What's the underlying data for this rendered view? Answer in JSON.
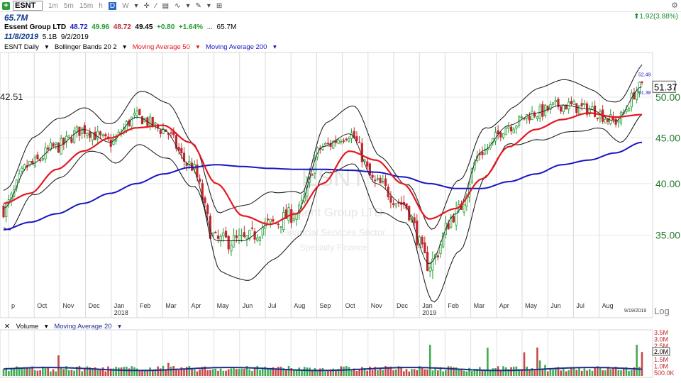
{
  "toolbar": {
    "symbol": "ESNT",
    "periods": [
      "1m",
      "5m",
      "15m",
      "h",
      "D",
      "W"
    ],
    "active_period": "D"
  },
  "header": {
    "volume_label": "65.7M",
    "company": "Essent Group LTD",
    "open": "48.72",
    "high": "49.96",
    "low": "48.72",
    "close": "49.45",
    "change": "+0.80",
    "change_pct": "+1.64%",
    "volume": "65.7M",
    "date": "11/8/2019",
    "market_cap": "5.1B",
    "earnings_date": "9/2/2019",
    "right_change": "1.92(3.88%)"
  },
  "legend": {
    "symbol": "ESNT Daily",
    "bb": "Bollinger Bands 20 2",
    "ma50": "Moving Average 50",
    "ma200": "Moving Average 200",
    "volume": "Volume",
    "vol_ma": "Moving Average 20"
  },
  "watermark": {
    "symbol": "ESNT",
    "name": "Essent Group LTD",
    "sector": "Financial Services Sector",
    "industry": "Specialty Finance"
  },
  "colors": {
    "up": "#1e9e32",
    "down": "#c0282d",
    "ma50": "#e4181f",
    "ma200": "#1616c4",
    "bb": "#222222",
    "volma": "#1b2e8c",
    "axis_text": "#1d7a2c"
  },
  "chart_data": {
    "type": "line",
    "title": "ESNT Daily",
    "y_axis_labels": [
      "35.00",
      "40.00",
      "45.00",
      "50.00"
    ],
    "last_price": "51.37",
    "price_marker_left": "42.51",
    "marker_high": "52.49",
    "marker_low": "51.38",
    "scale_label": "Log",
    "last_date_label": "9/19/2019",
    "x_month_labels": [
      "p",
      "Oct",
      "Nov",
      "Dec",
      "Jan",
      "Feb",
      "Mar",
      "Apr",
      "May",
      "Jun",
      "Jul",
      "Aug",
      "Sep",
      "Oct",
      "Nov",
      "Dec",
      "Jan",
      "Feb",
      "Mar",
      "Apr",
      "May",
      "Jun",
      "Jul",
      "Aug"
    ],
    "x_year_labels": [
      "2018",
      "2019"
    ],
    "volume_axis_labels": [
      "3.5M",
      "3.0M",
      "2.5M",
      "2.0M",
      "1.5M",
      "1.0M",
      "500.0K"
    ],
    "volume_last": "2.0M",
    "close_series": [
      {
        "date": "2017-09",
        "value": 37.5
      },
      {
        "date": "2017-10",
        "value": 42.0
      },
      {
        "date": "2017-11",
        "value": 44.0
      },
      {
        "date": "2017-12",
        "value": 46.0
      },
      {
        "date": "2018-01",
        "value": 44.5
      },
      {
        "date": "2018-02",
        "value": 47.5
      },
      {
        "date": "2018-03",
        "value": 46.0
      },
      {
        "date": "2018-04",
        "value": 42.0
      },
      {
        "date": "2018-05",
        "value": 34.5
      },
      {
        "date": "2018-06",
        "value": 34.5
      },
      {
        "date": "2018-07",
        "value": 36.0
      },
      {
        "date": "2018-08",
        "value": 37.0
      },
      {
        "date": "2018-09",
        "value": 44.0
      },
      {
        "date": "2018-10",
        "value": 45.5
      },
      {
        "date": "2018-11",
        "value": 40.0
      },
      {
        "date": "2018-12",
        "value": 38.0
      },
      {
        "date": "2019-01",
        "value": 32.5
      },
      {
        "date": "2019-02",
        "value": 37.0
      },
      {
        "date": "2019-03",
        "value": 43.5
      },
      {
        "date": "2019-04",
        "value": 46.5
      },
      {
        "date": "2019-05",
        "value": 48.0
      },
      {
        "date": "2019-06",
        "value": 49.0
      },
      {
        "date": "2019-07",
        "value": 48.5
      },
      {
        "date": "2019-08",
        "value": 47.0
      },
      {
        "date": "2019-09",
        "value": 51.37
      }
    ],
    "ma50_series": [
      {
        "date": "2017-09",
        "value": 38.0
      },
      {
        "date": "2017-10",
        "value": 39.0
      },
      {
        "date": "2017-11",
        "value": 41.5
      },
      {
        "date": "2017-12",
        "value": 43.5
      },
      {
        "date": "2018-01",
        "value": 45.0
      },
      {
        "date": "2018-02",
        "value": 46.2
      },
      {
        "date": "2018-03",
        "value": 46.5
      },
      {
        "date": "2018-04",
        "value": 44.5
      },
      {
        "date": "2018-05",
        "value": 40.0
      },
      {
        "date": "2018-06",
        "value": 36.8
      },
      {
        "date": "2018-07",
        "value": 36.0
      },
      {
        "date": "2018-08",
        "value": 37.0
      },
      {
        "date": "2018-09",
        "value": 40.0
      },
      {
        "date": "2018-10",
        "value": 43.5
      },
      {
        "date": "2018-11",
        "value": 42.5
      },
      {
        "date": "2018-12",
        "value": 40.0
      },
      {
        "date": "2019-01",
        "value": 36.5
      },
      {
        "date": "2019-02",
        "value": 37.5
      },
      {
        "date": "2019-03",
        "value": 40.5
      },
      {
        "date": "2019-04",
        "value": 44.0
      },
      {
        "date": "2019-05",
        "value": 46.0
      },
      {
        "date": "2019-06",
        "value": 47.2
      },
      {
        "date": "2019-07",
        "value": 48.0
      },
      {
        "date": "2019-08",
        "value": 47.5
      },
      {
        "date": "2019-09",
        "value": 47.8
      }
    ],
    "ma200_series": [
      {
        "date": "2017-09",
        "value": 35.5
      },
      {
        "date": "2017-10",
        "value": 36.2
      },
      {
        "date": "2017-11",
        "value": 37.0
      },
      {
        "date": "2017-12",
        "value": 38.0
      },
      {
        "date": "2018-01",
        "value": 39.0
      },
      {
        "date": "2018-02",
        "value": 40.0
      },
      {
        "date": "2018-03",
        "value": 41.0
      },
      {
        "date": "2018-04",
        "value": 41.7
      },
      {
        "date": "2018-05",
        "value": 42.0
      },
      {
        "date": "2018-06",
        "value": 41.8
      },
      {
        "date": "2018-07",
        "value": 41.6
      },
      {
        "date": "2018-08",
        "value": 41.5
      },
      {
        "date": "2018-09",
        "value": 41.5
      },
      {
        "date": "2018-10",
        "value": 41.4
      },
      {
        "date": "2018-11",
        "value": 41.2
      },
      {
        "date": "2018-12",
        "value": 40.7
      },
      {
        "date": "2019-01",
        "value": 40.0
      },
      {
        "date": "2019-02",
        "value": 39.5
      },
      {
        "date": "2019-03",
        "value": 39.5
      },
      {
        "date": "2019-04",
        "value": 40.2
      },
      {
        "date": "2019-05",
        "value": 41.0
      },
      {
        "date": "2019-06",
        "value": 42.0
      },
      {
        "date": "2019-07",
        "value": 42.5
      },
      {
        "date": "2019-08",
        "value": 43.3
      },
      {
        "date": "2019-09",
        "value": 44.5
      }
    ]
  }
}
